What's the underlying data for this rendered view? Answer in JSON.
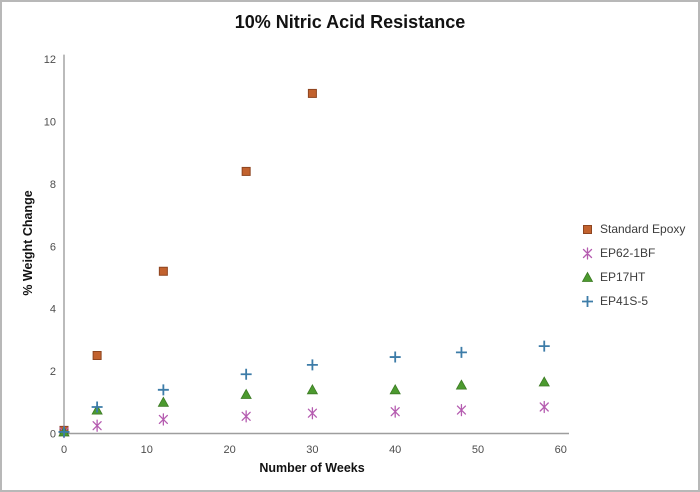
{
  "chart_data": {
    "type": "scatter",
    "title": "10% Nitric Acid Resistance",
    "xlabel": "Number of Weeks",
    "ylabel": "% Weight Change",
    "xlim": [
      0,
      60
    ],
    "ylim": [
      0,
      12
    ],
    "x_ticks": [
      0,
      10,
      20,
      30,
      40,
      50,
      60
    ],
    "y_ticks": [
      0,
      2,
      4,
      6,
      8,
      10,
      12
    ],
    "grid": false,
    "legend_position": "right",
    "series": [
      {
        "name": "Standard Epoxy",
        "marker": "square",
        "color": "#C2622E",
        "edge_color": "#8E4520",
        "x": [
          0,
          4,
          12,
          22,
          30
        ],
        "y": [
          0.1,
          2.5,
          5.2,
          8.4,
          10.9
        ]
      },
      {
        "name": "EP62-1BF",
        "marker": "asterisk",
        "color": "#B55CB0",
        "edge_color": "#B55CB0",
        "x": [
          0,
          4,
          12,
          22,
          30,
          40,
          48,
          58
        ],
        "y": [
          0.05,
          0.25,
          0.45,
          0.55,
          0.65,
          0.7,
          0.75,
          0.85
        ]
      },
      {
        "name": "EP17HT",
        "marker": "triangle",
        "color": "#4C9A2F",
        "edge_color": "#3C7A24",
        "x": [
          0,
          4,
          12,
          22,
          30,
          40,
          48,
          58
        ],
        "y": [
          0.05,
          0.75,
          1.0,
          1.25,
          1.4,
          1.4,
          1.55,
          1.65
        ]
      },
      {
        "name": "EP41S-5",
        "marker": "plus",
        "color": "#3D7CA8",
        "edge_color": "#3D7CA8",
        "x": [
          0,
          4,
          12,
          22,
          30,
          40,
          48,
          58
        ],
        "y": [
          0.05,
          0.85,
          1.4,
          1.9,
          2.2,
          2.45,
          2.6,
          2.8
        ]
      }
    ]
  },
  "colors": {
    "axis_line": "#9e9e9e",
    "tick_text": "#4d4d4d",
    "border": "#b8b8b8"
  }
}
